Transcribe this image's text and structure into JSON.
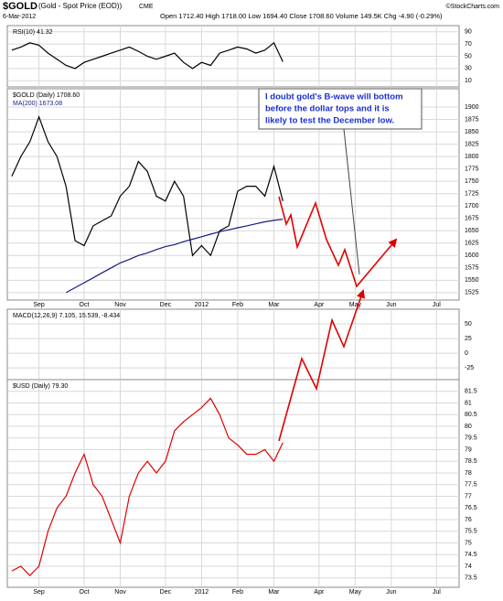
{
  "header": {
    "symbol": "$GOLD",
    "description": "(Gold - Spot Price (EOD))",
    "exchange": "CME",
    "date": "6-Mar-2012",
    "quote": "Open 1712.40  High 1718.00  Low 1694.40  Close 1708.60  Volume 149.5K  Chg -4.90 (-0.29%)",
    "source": "©StockCharts.com"
  },
  "annotation": [
    "I doubt gold's B-wave will bottom",
    "before the dollar tops and it is",
    "likely to test the December low."
  ],
  "chart_data": [
    {
      "type": "line",
      "panel": "rsi",
      "ylim": [
        0,
        100
      ],
      "yticks": [
        90,
        70,
        50,
        30,
        10
      ],
      "grid": true,
      "series": [
        {
          "name": "RSI(10) 41.32",
          "color": "#000000",
          "values": [
            60,
            65,
            72,
            68,
            55,
            45,
            35,
            30,
            40,
            45,
            50,
            55,
            60,
            65,
            58,
            50,
            45,
            50,
            55,
            40,
            30,
            40,
            35,
            55,
            60,
            65,
            62,
            55,
            60,
            72,
            41,
            null,
            null,
            null,
            null,
            null,
            null,
            null,
            null,
            null,
            null,
            null,
            null,
            null,
            null,
            null,
            null,
            null,
            null,
            null
          ]
        }
      ]
    },
    {
      "type": "line",
      "panel": "gold",
      "ylim": [
        1510,
        1937
      ],
      "yticks": [
        1525,
        1550,
        1575,
        1600,
        1625,
        1650,
        1675,
        1700,
        1725,
        1750,
        1775,
        1800,
        1825,
        1850,
        1875,
        1900
      ],
      "grid": true,
      "categories": [
        null,
        null,
        null,
        "Sep",
        null,
        null,
        null,
        null,
        "Oct",
        null,
        null,
        null,
        "Nov",
        null,
        null,
        null,
        null,
        "Dec",
        null,
        null,
        null,
        "2012",
        null,
        null,
        null,
        "Feb",
        null,
        null,
        null,
        "Mar",
        null,
        null,
        null,
        null,
        "Apr",
        null,
        null,
        null,
        "May",
        null,
        null,
        null,
        "Jun",
        null,
        null,
        null,
        null,
        "Jul",
        null,
        null
      ],
      "series": [
        {
          "name": "$GOLD (Daily) 1708.60",
          "color": "#000000",
          "values": [
            1760,
            1800,
            1830,
            1880,
            1830,
            1800,
            1740,
            1630,
            1620,
            1660,
            1670,
            1680,
            1720,
            1740,
            1790,
            1770,
            1720,
            1710,
            1750,
            1720,
            1600,
            1620,
            1600,
            1650,
            1660,
            1730,
            1740,
            1740,
            1720,
            1780,
            1710,
            null,
            null,
            null,
            null,
            null,
            null,
            null,
            null,
            null,
            null,
            null,
            null,
            null,
            null,
            null,
            null,
            null,
            null,
            null
          ]
        },
        {
          "name": "MA(200) 1673.08",
          "color": "#1a1a80",
          "values": [
            null,
            null,
            null,
            null,
            null,
            null,
            1525,
            1535,
            1545,
            1555,
            1565,
            1575,
            1585,
            1592,
            1600,
            1605,
            1612,
            1618,
            1622,
            1628,
            1633,
            1638,
            1643,
            1648,
            1652,
            1656,
            1660,
            1664,
            1668,
            1671,
            1673,
            null,
            null,
            null,
            null,
            null,
            null,
            null,
            null,
            null,
            null,
            null,
            null,
            null,
            null,
            null,
            null,
            null,
            null,
            null
          ]
        }
      ]
    },
    {
      "type": "line",
      "panel": "macd",
      "ylim": [
        -45,
        75
      ],
      "yticks": [
        50,
        25,
        0,
        -25
      ],
      "grid": true,
      "series": [
        {
          "name": "MACD(12,26,9) 7.105, 15.539, -8.434",
          "color": "#000000",
          "values": []
        }
      ]
    },
    {
      "type": "line",
      "panel": "usd",
      "ylim": [
        73.1,
        82
      ],
      "yticks": [
        73.5,
        74,
        74.5,
        75,
        75.5,
        76,
        76.5,
        77,
        77.5,
        78,
        78.5,
        79,
        79.5,
        80,
        80.5,
        81,
        81.5
      ],
      "grid": true,
      "categories": [
        null,
        null,
        null,
        "Sep",
        null,
        null,
        null,
        null,
        "Oct",
        null,
        null,
        null,
        "Nov",
        null,
        null,
        null,
        null,
        "Dec",
        null,
        null,
        null,
        "2012",
        null,
        null,
        null,
        "Feb",
        null,
        null,
        null,
        "Mar",
        null,
        null,
        null,
        null,
        "Apr",
        null,
        null,
        null,
        "May",
        null,
        null,
        null,
        "Jun",
        null,
        null,
        null,
        null,
        "Jul",
        null,
        null
      ],
      "series": [
        {
          "name": "$USD (Daily) 79.30",
          "color": "#e00000",
          "values": [
            73.8,
            74.0,
            73.6,
            74.0,
            75.5,
            76.5,
            77.0,
            78.0,
            78.8,
            77.5,
            77.0,
            76.0,
            75.0,
            77.0,
            78.0,
            78.5,
            78.0,
            78.5,
            79.8,
            80.2,
            80.5,
            80.8,
            81.2,
            80.5,
            79.5,
            79.2,
            78.8,
            78.8,
            79.0,
            78.5,
            79.3,
            null,
            null,
            null,
            null,
            null,
            null,
            null,
            null,
            null,
            null,
            null,
            null,
            null,
            null,
            null,
            null,
            null,
            null,
            null
          ]
        }
      ]
    }
  ]
}
